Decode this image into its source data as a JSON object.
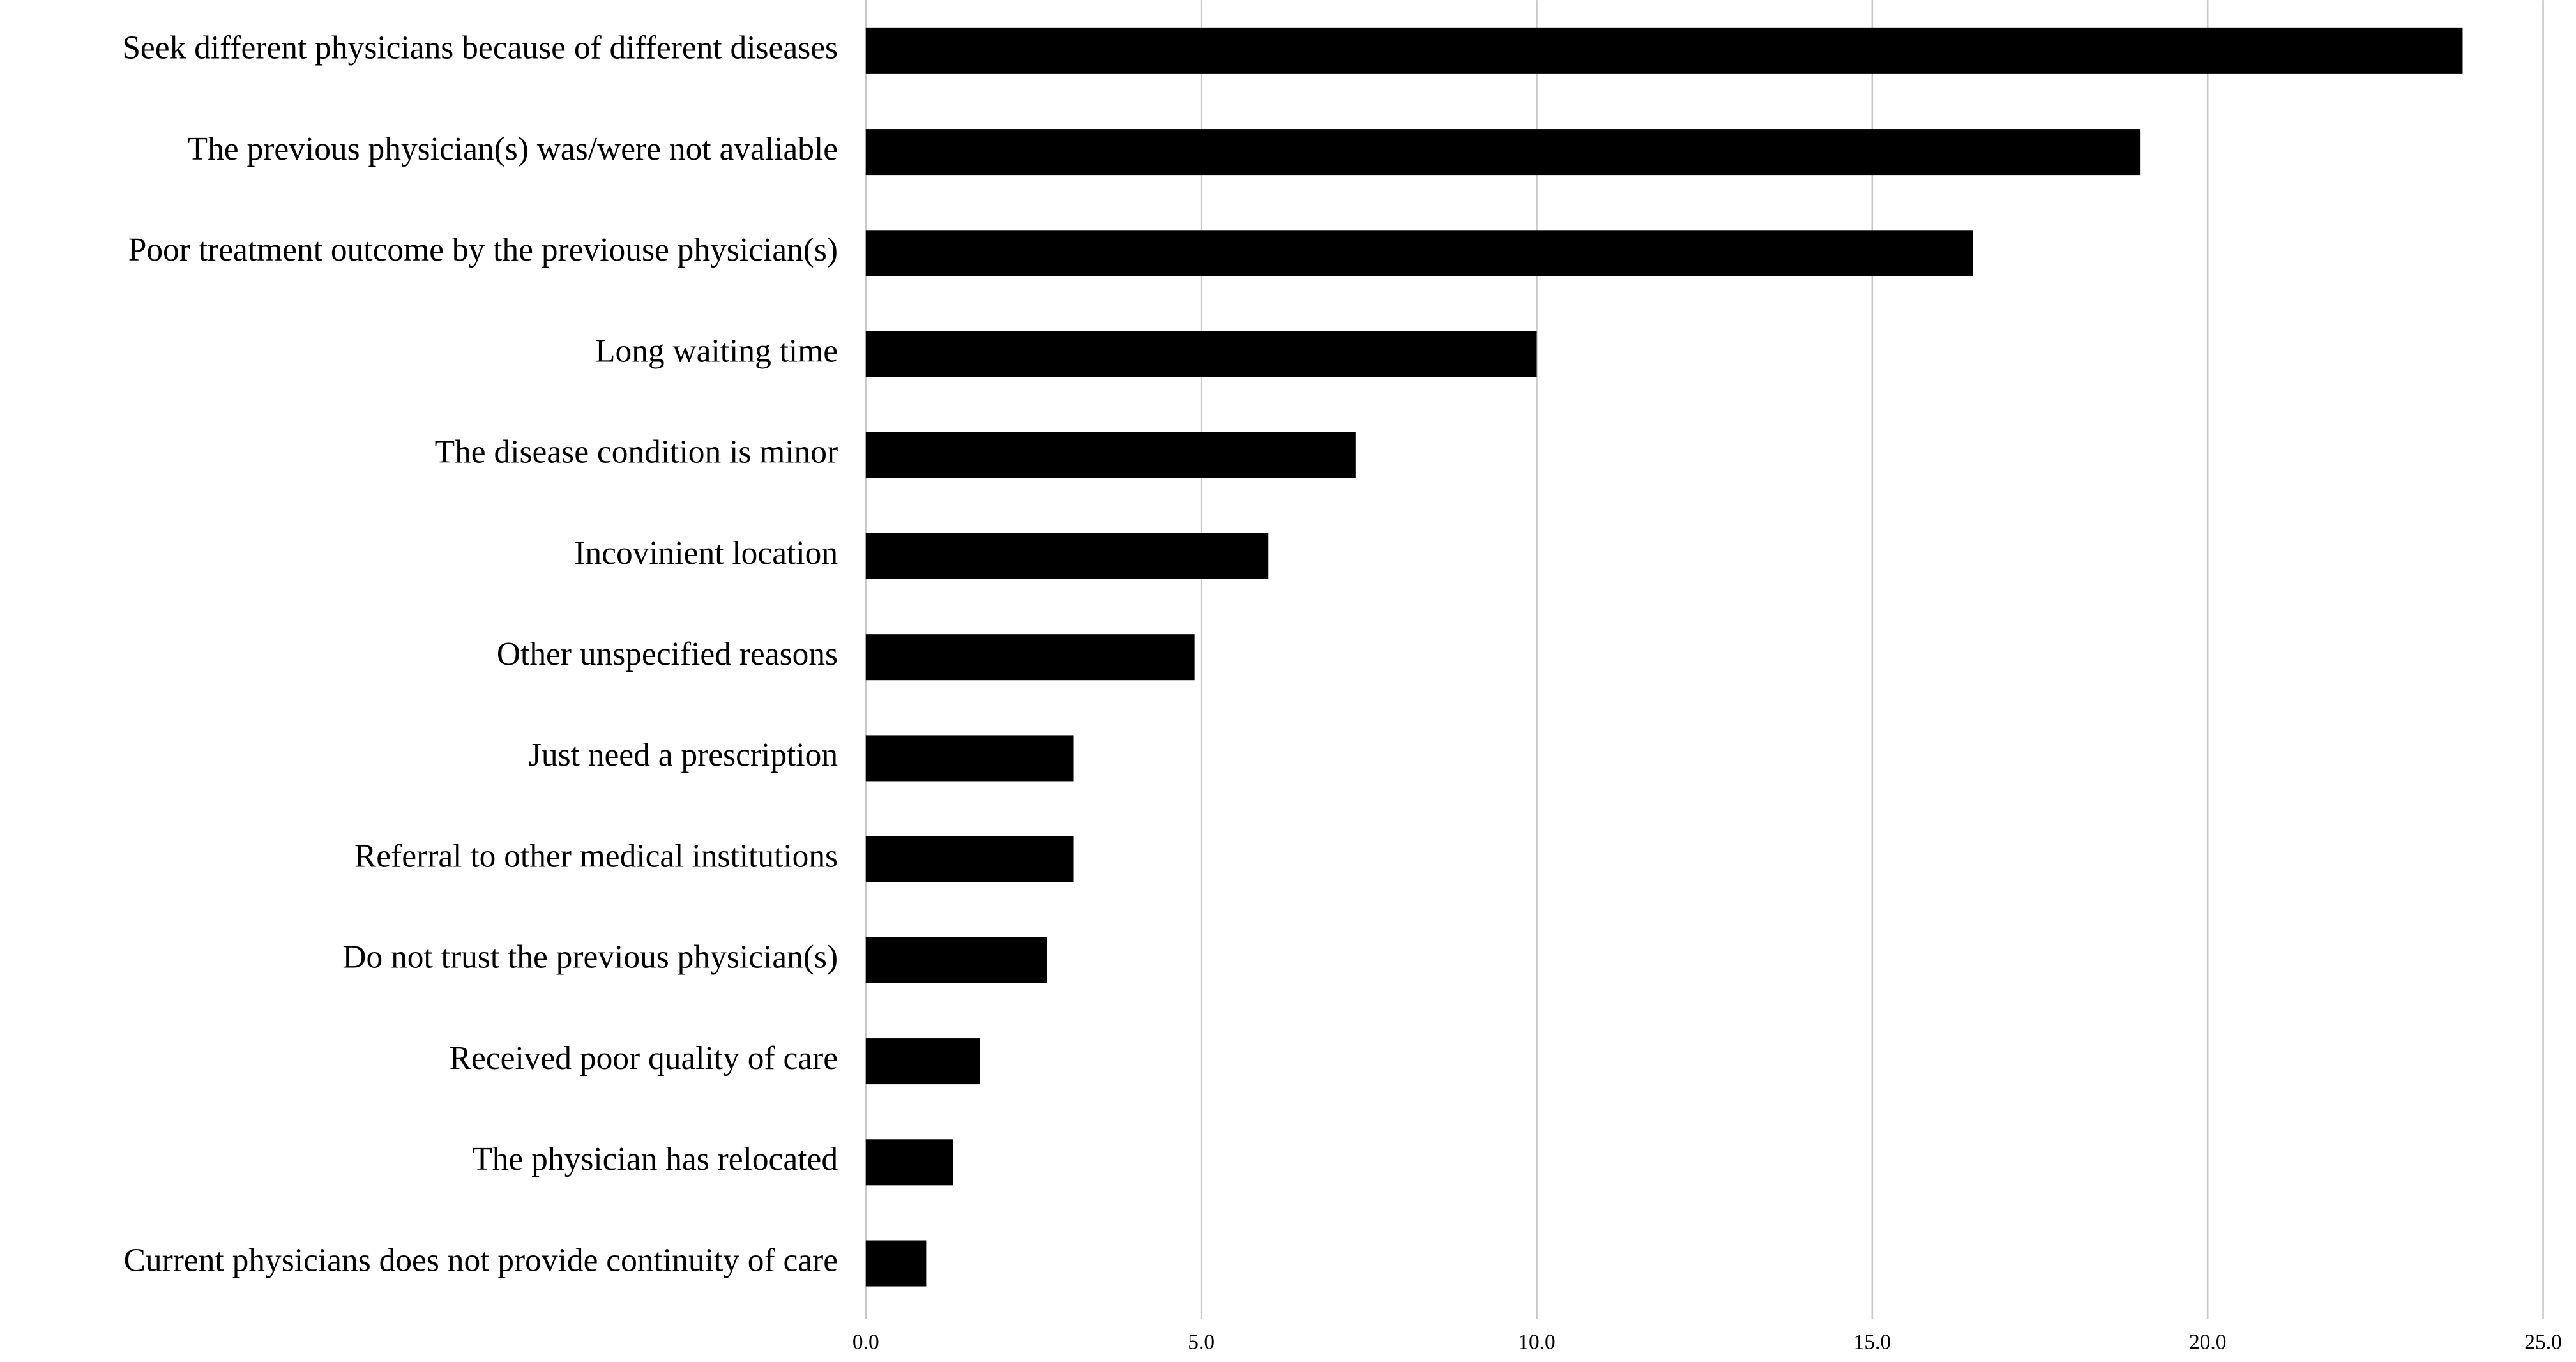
{
  "chart_data": {
    "type": "bar",
    "orientation": "horizontal",
    "categories": [
      "Seek different physicians because of different diseases",
      "The previous physician(s) was/were not avaliable",
      "Poor treatment outcome by the previouse physician(s)",
      "Long waiting time",
      "The disease condition is minor",
      "Incovinient location",
      "Other unspecified reasons",
      "Just need a prescription",
      "Referral to other medical institutions",
      "Do not trust the previous physician(s)",
      "Received poor quality of care",
      "The physician has relocated",
      "Current physicians does not provide continuity of care"
    ],
    "values": [
      23.8,
      19.0,
      16.5,
      10.0,
      7.3,
      6.0,
      4.9,
      3.1,
      3.1,
      2.7,
      1.7,
      1.3,
      0.9
    ],
    "color": "#000000",
    "xlim": [
      0,
      25
    ],
    "xticks": [
      {
        "value": 0,
        "label": "0.0"
      },
      {
        "value": 5,
        "label": "5.0"
      },
      {
        "value": 10,
        "label": "10.0"
      },
      {
        "value": 15,
        "label": "15.0"
      },
      {
        "value": 20,
        "label": "20.0"
      },
      {
        "value": 25,
        "label": "25.0"
      }
    ],
    "grid": true
  }
}
